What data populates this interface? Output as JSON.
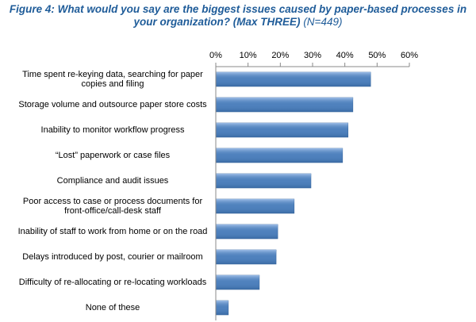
{
  "chart_data": {
    "type": "bar",
    "orientation": "horizontal",
    "title": "Figure 4: What would you say are the biggest issues caused by paper-based processes in your organization? (Max THREE)",
    "subtitle": "(N=449)",
    "categories": [
      "Time spent re-keying data, searching for paper copies and filing",
      "Storage volume and outsource paper store costs",
      "Inability to monitor workflow progress",
      "“Lost” paperwork or case files",
      "Compliance and audit issues",
      "Poor access to case or process documents for front-office/call-desk staff",
      "Inability of staff to work from home or on the road",
      "Delays introduced by post, courier or mailroom",
      "Difficulty of re-allocating or re-locating workloads",
      "None of these"
    ],
    "values": [
      48,
      42.5,
      41,
      39.3,
      29.5,
      24.3,
      19.2,
      18.7,
      13.5,
      3.9
    ],
    "color": "#4f81bd",
    "xlim": [
      0,
      60
    ],
    "xticks": [
      {
        "value": 0,
        "label": "0%"
      },
      {
        "value": 10,
        "label": "10%"
      },
      {
        "value": 20,
        "label": "20%"
      },
      {
        "value": 30,
        "label": "30%"
      },
      {
        "value": 40,
        "label": "40%"
      },
      {
        "value": 50,
        "label": "50%"
      },
      {
        "value": 60,
        "label": "60%"
      }
    ],
    "grid": false
  }
}
